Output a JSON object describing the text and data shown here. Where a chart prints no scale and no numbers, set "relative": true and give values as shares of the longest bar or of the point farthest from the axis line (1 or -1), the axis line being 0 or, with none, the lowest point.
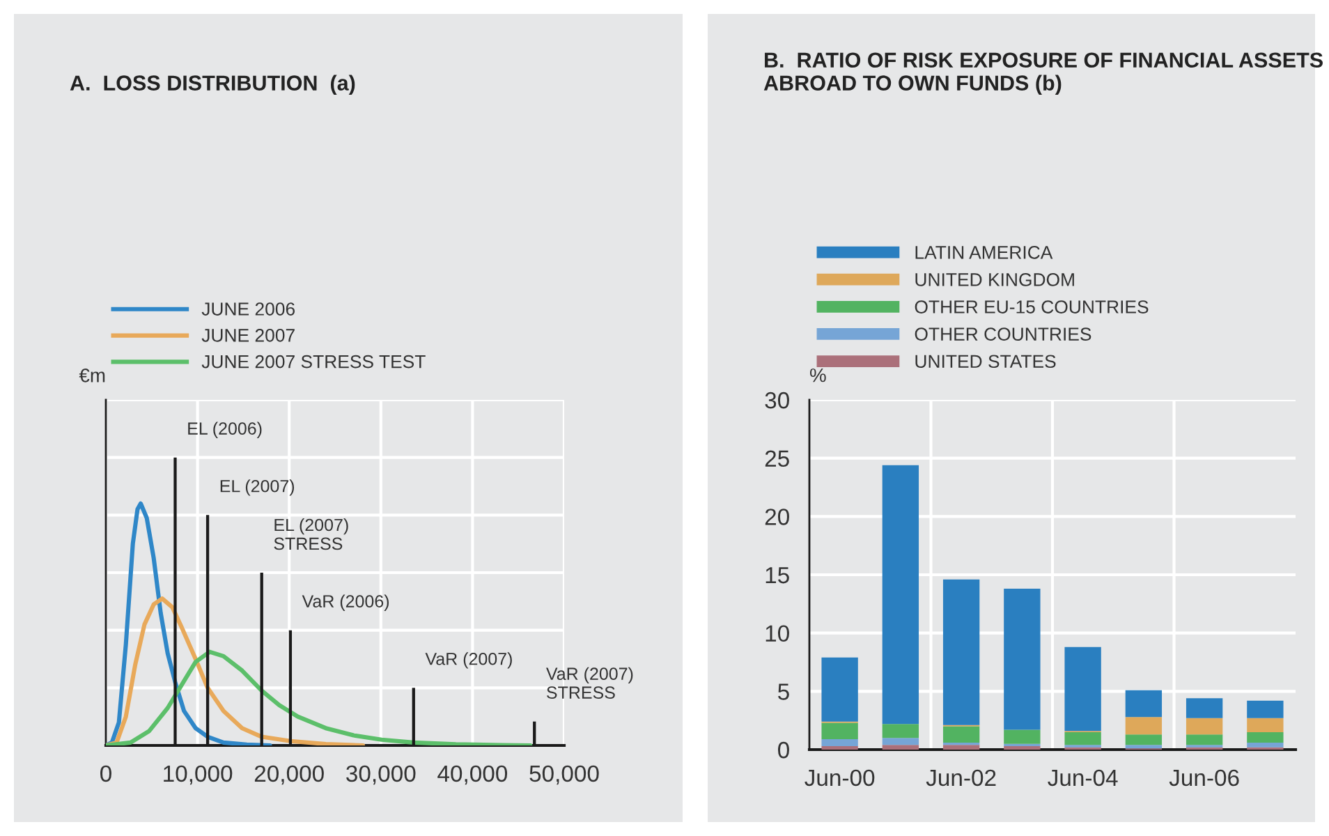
{
  "chart_data": [
    {
      "type": "line",
      "title": "A.  LOSS DISTRIBUTION  (a)",
      "ylabel": "€m",
      "relative": true,
      "grid": true,
      "legend": "top left",
      "xlim": [
        0,
        50000
      ],
      "xticks": [
        0,
        {
          "value": 10000,
          "label": "10,000"
        },
        {
          "value": 20000,
          "label": "20,000"
        },
        {
          "value": 30000,
          "label": "30,000"
        },
        {
          "value": 40000,
          "label": "40,000"
        },
        {
          "value": 50000,
          "label": "50,000"
        }
      ],
      "series": [
        {
          "name": "JUNE 2006",
          "color": "#2f87c8",
          "x": [
            0,
            660,
            1420,
            2180,
            2940,
            3450,
            3800,
            4460,
            5220,
            5980,
            6740,
            7560,
            8520,
            9790,
            11100,
            12830,
            15370,
            17900
          ],
          "values": [
            0,
            0.01,
            0.08,
            0.35,
            0.7,
            0.82,
            0.84,
            0.79,
            0.65,
            0.46,
            0.32,
            0.22,
            0.12,
            0.06,
            0.03,
            0.01,
            0.003,
            0
          ]
        },
        {
          "name": "JUNE 2007",
          "color": "#e8a95a",
          "x": [
            0,
            1170,
            2180,
            3200,
            4210,
            5220,
            6140,
            7250,
            8270,
            9790,
            11100,
            12830,
            14860,
            17000,
            20130,
            24000,
            28040
          ],
          "values": [
            0,
            0.01,
            0.1,
            0.28,
            0.42,
            0.49,
            0.51,
            0.48,
            0.41,
            0.3,
            0.2,
            0.12,
            0.06,
            0.03,
            0.015,
            0.005,
            0
          ]
        },
        {
          "name": "JUNE 2007 STRESS TEST",
          "color": "#5cbf6a",
          "x": [
            0,
            2690,
            4720,
            6740,
            8270,
            9790,
            11310,
            12830,
            14860,
            17000,
            18910,
            20940,
            23990,
            27030,
            30080,
            33570,
            38180,
            43250,
            46300
          ],
          "values": [
            0,
            0.01,
            0.05,
            0.13,
            0.21,
            0.29,
            0.325,
            0.31,
            0.26,
            0.19,
            0.14,
            0.1,
            0.06,
            0.035,
            0.02,
            0.01,
            0.004,
            0.001,
            0
          ]
        },
        {
          "type": "bar",
          "color": "#1a1a1a",
          "x": [
            7560,
            11100,
            17000,
            20130,
            33570,
            46750
          ],
          "values": [
            1.0,
            0.8,
            0.6,
            0.4,
            0.2,
            0.083
          ]
        }
      ],
      "annotations": [
        {
          "text": "EL (2006)",
          "x": 7560,
          "y": 1.0
        },
        {
          "text": "EL (2007)",
          "x": 11100,
          "y": 0.8
        },
        {
          "text": "EL (2007)\nSTRESS",
          "x": 17000,
          "y": 0.6
        },
        {
          "text": "VaR (2006)",
          "x": 20130,
          "y": 0.4
        },
        {
          "text": "VaR (2007)",
          "x": 33570,
          "y": 0.2
        },
        {
          "text": "VaR (2007)\nSTRESS",
          "x": 46750,
          "y": 0.083
        }
      ]
    },
    {
      "type": "bar",
      "stacked": true,
      "title": "B.  RATIO OF RISK EXPOSURE OF FINANCIAL ASSETS ABROAD TO OWN FUNDS (b)",
      "ylabel": "%",
      "grid": true,
      "legend": "top left",
      "categories": [
        "Jun-00",
        null,
        "Jun-02",
        null,
        "Jun-04",
        null,
        "Jun-06",
        null
      ],
      "ylim": [
        0,
        30
      ],
      "yticks": [
        0,
        5,
        10,
        15,
        20,
        25,
        30
      ],
      "series": [
        {
          "name": "UNITED STATES",
          "color": "#ab707a",
          "values": [
            0.3,
            0.4,
            0.4,
            0.3,
            0.2,
            0.1,
            0.2,
            0.2
          ]
        },
        {
          "name": "OTHER COUNTRIES",
          "color": "#76a5d6",
          "values": [
            0.6,
            0.6,
            0.2,
            0.2,
            0.2,
            0.3,
            0.2,
            0.4
          ]
        },
        {
          "name": "OTHER EU-15 COUNTRIES",
          "color": "#52b361",
          "values": [
            1.4,
            1.2,
            1.4,
            1.2,
            1.1,
            0.9,
            0.9,
            0.9
          ]
        },
        {
          "name": "UNITED KINGDOM",
          "color": "#dea85a",
          "values": [
            0.1,
            0,
            0.1,
            0,
            0.1,
            1.5,
            1.4,
            1.2
          ]
        },
        {
          "name": "LATIN AMERICA",
          "color": "#2a7fc0",
          "values": [
            5.5,
            22.2,
            12.5,
            12.1,
            7.2,
            2.3,
            1.7,
            1.5
          ]
        }
      ]
    }
  ]
}
